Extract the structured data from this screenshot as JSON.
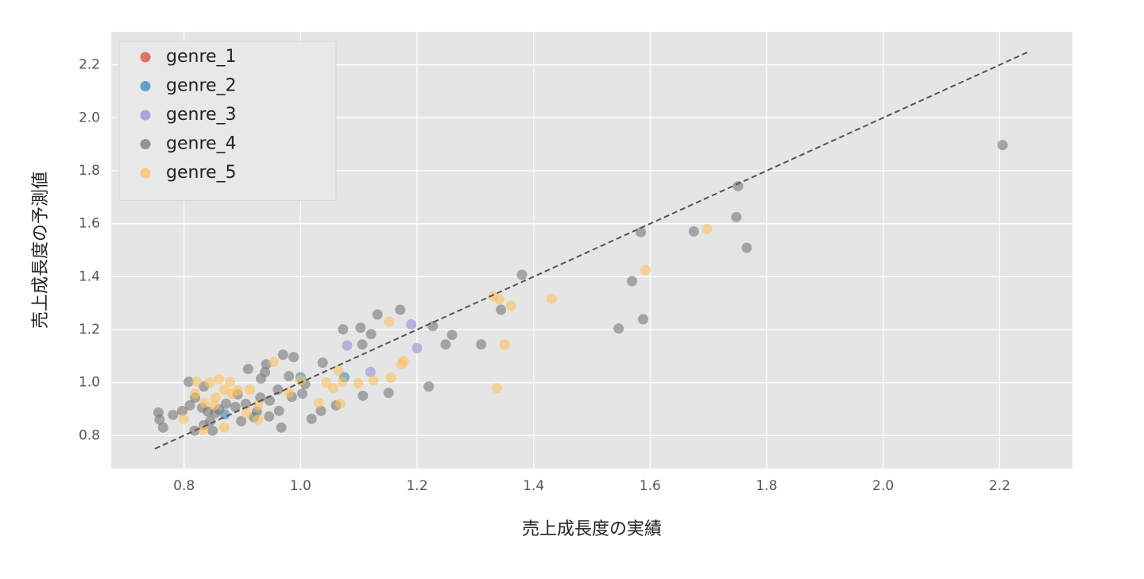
{
  "chart_data": {
    "type": "scatter",
    "x_label": "売上成長度の実績",
    "y_label": "売上成長度の予測値",
    "xlim": [
      0.675,
      2.325
    ],
    "ylim": [
      0.675,
      2.325
    ],
    "xticks": [
      0.8,
      {
        "value": 1,
        "label": "1.0"
      },
      1.2,
      1.4,
      1.6,
      1.8,
      {
        "value": 2,
        "label": "2.0"
      },
      2.2
    ],
    "yticks": [
      0.8,
      {
        "value": 1,
        "label": "1.0"
      },
      1.2,
      1.4,
      1.6,
      1.8,
      {
        "value": 2,
        "label": "2.0"
      },
      2.2
    ],
    "grid": true,
    "legend_position": "upper left",
    "reference_line": {
      "x": [
        0.75,
        2.25
      ],
      "y": [
        0.75,
        2.25
      ]
    },
    "series": [
      {
        "name": "genre_1",
        "color": "#E24A33",
        "x": [],
        "y": []
      },
      {
        "name": "genre_2",
        "color": "#348ABD",
        "x": [
          1.0,
          1.075,
          0.87
        ],
        "y": [
          1.02,
          1.02,
          0.88
        ]
      },
      {
        "name": "genre_3",
        "color": "#988ED5",
        "x": [
          1.08,
          1.12,
          1.19,
          1.2
        ],
        "y": [
          1.14,
          1.04,
          1.22,
          1.13
        ]
      },
      {
        "name": "genre_4",
        "color": "#777777",
        "x": [
          2.205,
          1.751,
          1.748,
          1.766,
          1.675,
          1.584,
          1.569,
          1.588,
          1.546,
          1.38,
          1.344,
          1.31,
          1.26,
          1.249,
          1.227,
          1.22,
          1.171,
          1.132,
          1.121,
          1.103,
          1.106,
          1.073,
          1.151,
          1.107,
          1.038,
          1.035,
          1.019,
          1.061,
          0.988,
          0.97,
          0.941,
          0.939,
          0.932,
          0.91,
          0.98,
          1.008,
          1.003,
          0.985,
          0.961,
          0.947,
          0.963,
          0.967,
          0.946,
          0.92,
          0.898,
          0.888,
          0.872,
          0.853,
          0.845,
          0.849,
          0.834,
          0.818,
          0.81,
          0.797,
          0.781,
          0.756,
          0.758,
          0.764,
          0.808,
          0.834,
          0.819,
          0.831,
          0.841,
          0.86,
          0.892,
          0.906,
          0.931,
          0.925
        ],
        "y": [
          1.897,
          1.742,
          1.625,
          1.509,
          1.571,
          1.568,
          1.383,
          1.239,
          1.204,
          1.407,
          1.275,
          1.144,
          1.18,
          1.144,
          1.213,
          0.985,
          1.275,
          1.257,
          1.183,
          1.207,
          1.144,
          1.201,
          0.961,
          0.95,
          1.075,
          0.893,
          0.863,
          0.914,
          1.096,
          1.105,
          1.069,
          1.039,
          1.015,
          1.051,
          1.024,
          0.994,
          0.958,
          0.946,
          0.973,
          0.932,
          0.893,
          0.83,
          0.872,
          0.869,
          0.854,
          0.908,
          0.92,
          0.884,
          0.854,
          0.818,
          0.839,
          0.818,
          0.914,
          0.893,
          0.878,
          0.887,
          0.86,
          0.83,
          1.003,
          0.985,
          0.943,
          0.905,
          0.89,
          0.899,
          0.955,
          0.92,
          0.943,
          0.89
        ]
      },
      {
        "name": "genre_5",
        "color": "#FBC15E",
        "x": [
          1.698,
          1.592,
          1.431,
          1.361,
          1.341,
          1.331,
          1.35,
          1.337,
          1.152,
          1.177,
          1.173,
          1.155,
          1.125,
          1.099,
          1.072,
          1.065,
          1.068,
          1.056,
          1.044,
          1.031,
          0.954,
          1.0,
          0.98,
          0.913,
          0.892,
          0.879,
          0.86,
          0.844,
          0.822,
          0.819,
          0.835,
          0.854,
          0.869,
          0.882,
          0.927,
          0.927,
          0.907,
          0.869,
          0.833,
          0.799,
          0.852
        ],
        "y": [
          1.58,
          1.425,
          1.317,
          1.29,
          1.314,
          1.326,
          1.144,
          0.979,
          1.23,
          1.081,
          1.069,
          1.018,
          1.009,
          0.997,
          1.003,
          1.045,
          0.92,
          0.979,
          1.0,
          0.923,
          1.078,
          1.009,
          0.961,
          0.973,
          0.97,
          1.003,
          1.012,
          1.0,
          1.003,
          0.958,
          0.923,
          0.943,
          0.973,
          0.958,
          0.914,
          0.86,
          0.884,
          0.83,
          0.821,
          0.863,
          0.914
        ]
      }
    ]
  }
}
